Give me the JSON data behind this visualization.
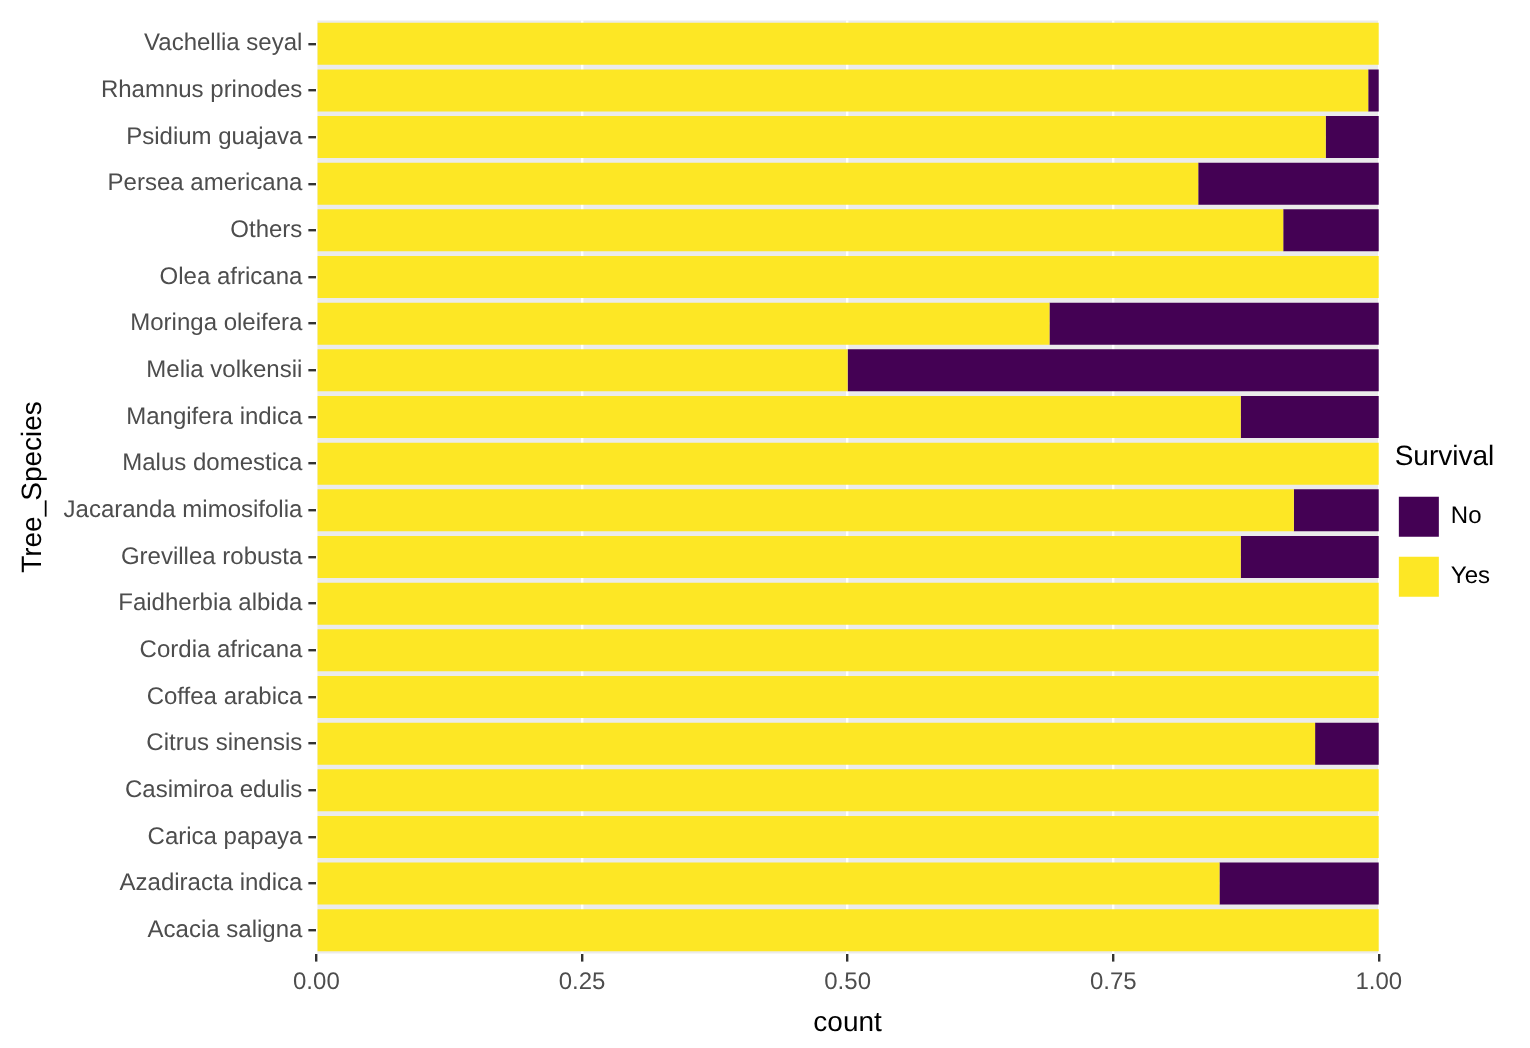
{
  "chart_data": {
    "type": "bar",
    "orientation": "horizontal",
    "stacked": true,
    "xlabel": "count",
    "ylabel": "Tree_Species",
    "legend_title": "Survival",
    "legend": "right",
    "categories": [
      "Vachellia seyal",
      "Rhamnus prinodes",
      "Psidium guajava",
      "Persea americana",
      "Others",
      "Olea africana",
      "Moringa oleifera",
      "Melia volkensii",
      "Mangifera indica",
      "Malus domestica",
      "Jacaranda mimosifolia",
      "Grevillea robusta",
      "Faidherbia albida",
      "Cordia africana",
      "Coffea arabica",
      "Citrus sinensis",
      "Casimiroa edulis",
      "Carica papaya",
      "Azadiracta indica",
      "Acacia saligna"
    ],
    "series": [
      {
        "name": "Yes",
        "color": "#fde725",
        "values": [
          1,
          0.99,
          0.95,
          0.83,
          0.91,
          1,
          0.69,
          0.5,
          0.87,
          1,
          0.92,
          0.87,
          1,
          1,
          1,
          0.94,
          1,
          1,
          0.85,
          1
        ]
      },
      {
        "name": "No",
        "color": "#440154",
        "values": [
          0,
          0.01,
          0.05,
          0.17,
          0.09,
          0,
          0.31,
          0.5,
          0.13,
          0,
          0.08,
          0.13,
          0,
          0,
          0,
          0.06,
          0,
          0,
          0.15,
          0
        ]
      }
    ],
    "xlim": [
      0,
      1
    ],
    "xticks": [
      {
        "value": 0,
        "label": "0.00"
      },
      {
        "value": 0.25,
        "label": "0.25"
      },
      {
        "value": 0.5,
        "label": "0.50"
      },
      {
        "value": 0.75,
        "label": "0.75"
      },
      {
        "value": 1,
        "label": "1.00"
      }
    ],
    "grid": true
  }
}
